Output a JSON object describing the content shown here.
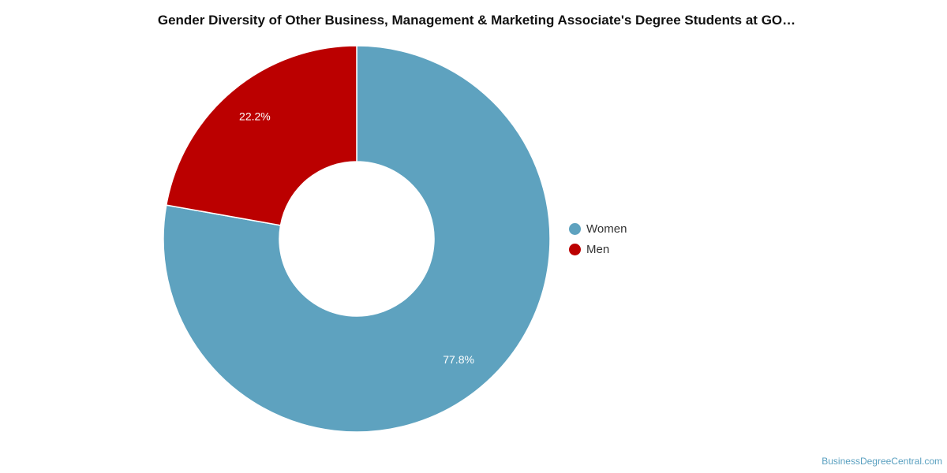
{
  "chart_data": {
    "type": "pie",
    "title": "Gender Diversity of Other Business, Management & Marketing Associate's Degree Students at GO…",
    "donut": true,
    "slices": [
      {
        "label": "Women",
        "value": 77.8,
        "value_label": "77.8%",
        "color": "#5ea2bf"
      },
      {
        "label": "Men",
        "value": 22.2,
        "value_label": "22.2%",
        "color": "#bb0000"
      }
    ],
    "legend_position": "right"
  },
  "watermark": "BusinessDegreeCentral.com"
}
